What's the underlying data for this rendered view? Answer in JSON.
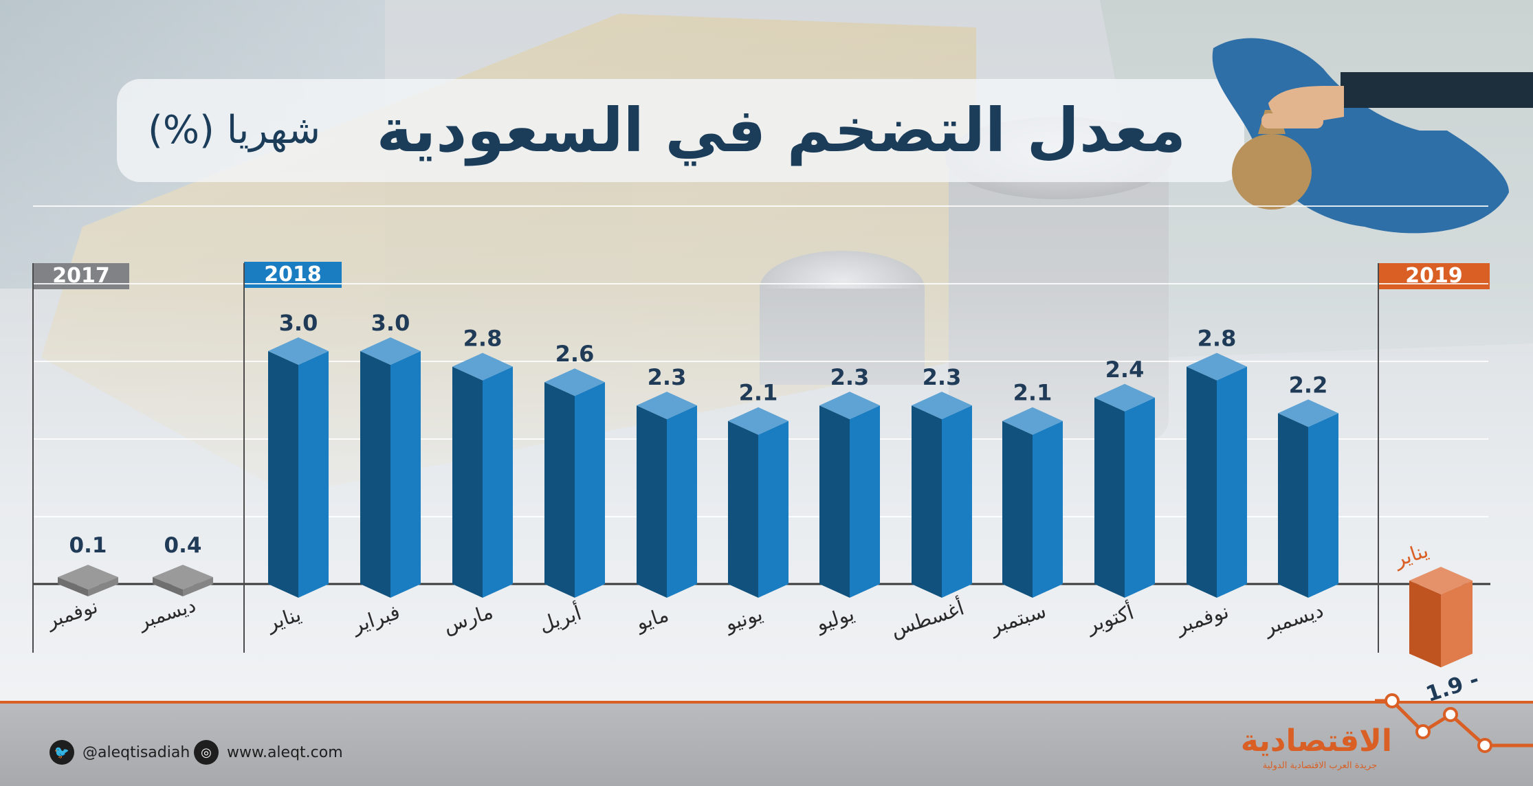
{
  "header": {
    "title": "معدل التضخم في السعودية",
    "subtitle": "شهريا (%)"
  },
  "years": {
    "y2017": "2017",
    "y2018": "2018",
    "y2019": "2019"
  },
  "chart_data": {
    "type": "bar",
    "title": "معدل التضخم في السعودية",
    "subtitle": "شهريا (%)",
    "ylim": [
      -2,
      5
    ],
    "grid": true,
    "groups": [
      {
        "year": "2017",
        "categories": [
          "نوفمبر",
          "ديسمبر"
        ],
        "values": [
          0.1,
          0.4
        ],
        "labels": [
          "0.1",
          "0.4"
        ]
      },
      {
        "year": "2018",
        "categories": [
          "يناير",
          "فبراير",
          "مارس",
          "أبريل",
          "مايو",
          "يونيو",
          "يوليو",
          "أغسطس",
          "سبتمبر",
          "أكتوبر",
          "نوفمبر",
          "ديسمبر"
        ],
        "values": [
          3.0,
          3.0,
          2.8,
          2.6,
          2.3,
          2.1,
          2.3,
          2.3,
          2.1,
          2.4,
          2.8,
          2.2
        ],
        "labels": [
          "3.0",
          "3.0",
          "2.8",
          "2.6",
          "2.3",
          "2.1",
          "2.3",
          "2.3",
          "2.1",
          "2.4",
          "2.8",
          "2.2"
        ]
      },
      {
        "year": "2019",
        "categories": [
          "يناير"
        ],
        "values": [
          -1.9
        ],
        "labels": [
          "1.9 -"
        ]
      }
    ],
    "colors": {
      "y2017": "#8e8e8e",
      "y2018": "#1a7cc1",
      "y2019": "#d95f25"
    }
  },
  "footer": {
    "twitter": "@aleqtisadiah",
    "website": "www.aleqt.com",
    "logo_main": "الاقتصادية",
    "logo_sub": "جريدة العرب الاقتصادية الدولية"
  },
  "icons": {
    "twitter": "twitter-icon",
    "web": "globe-icon",
    "map": "saudi-map-icon"
  }
}
